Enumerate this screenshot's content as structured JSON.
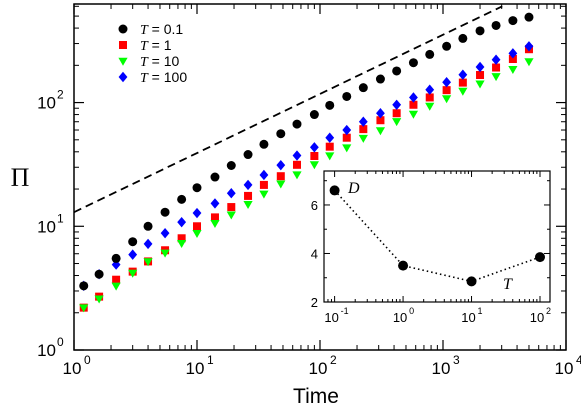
{
  "chart_data": [
    {
      "type": "scatter",
      "xlabel": "Time",
      "ylabel": "Π",
      "xscale": "log",
      "yscale": "log",
      "xlim": [
        1,
        10000
      ],
      "ylim": [
        1,
        600
      ],
      "xticks": [
        1,
        10,
        100,
        1000,
        10000
      ],
      "yticks": [
        1,
        10,
        100
      ],
      "xtick_labels": [
        [
          "10",
          "0"
        ],
        [
          "10",
          "1"
        ],
        [
          "10",
          "2"
        ],
        [
          "10",
          "3"
        ],
        [
          "10",
          "4"
        ]
      ],
      "ytick_labels": [
        [
          "10",
          "0"
        ],
        [
          "10",
          "1"
        ],
        [
          "10",
          "2"
        ]
      ],
      "legend_placement": "top-left",
      "series": [
        {
          "name": "T = 0.1",
          "marker": "circle",
          "color": "#000000",
          "x": [
            1.2,
            1.6,
            2.2,
            3,
            4,
            5.5,
            7.5,
            10,
            14,
            19,
            26,
            35,
            48,
            65,
            90,
            120,
            165,
            225,
            310,
            420,
            575,
            780,
            1070,
            1450,
            2000,
            2700,
            3700,
            5000
          ],
          "y": [
            3.3,
            4.1,
            5.5,
            7.5,
            10,
            13,
            16.5,
            20.5,
            25,
            31,
            38,
            46,
            56,
            67,
            80,
            95,
            112,
            132,
            155,
            180,
            210,
            245,
            285,
            330,
            380,
            420,
            460,
            490
          ]
        },
        {
          "name": "T = 1",
          "marker": "square",
          "color": "#ff0000",
          "x": [
            1.2,
            1.6,
            2.2,
            3,
            4,
            5.5,
            7.5,
            10,
            14,
            19,
            26,
            35,
            48,
            65,
            90,
            120,
            165,
            225,
            310,
            420,
            575,
            780,
            1070,
            1450,
            2000,
            2700,
            3700,
            5000
          ],
          "y": [
            2.2,
            2.7,
            3.7,
            4.3,
            5.2,
            6.4,
            8,
            10,
            11.8,
            14.3,
            17.6,
            21.6,
            25.4,
            31.4,
            37,
            44,
            52,
            61,
            72,
            82,
            96,
            110,
            126,
            145,
            167,
            192,
            225,
            270
          ]
        },
        {
          "name": "T = 10",
          "marker": "triangle-down",
          "color": "#00ff00",
          "x": [
            1.2,
            1.6,
            2.2,
            3,
            4,
            5.5,
            7.5,
            10,
            14,
            19,
            26,
            35,
            48,
            65,
            90,
            120,
            165,
            225,
            310,
            420,
            575,
            780,
            1070,
            1450,
            2000,
            2700,
            3700,
            5000
          ],
          "y": [
            2.2,
            2.6,
            3.3,
            4.2,
            5.2,
            6.1,
            7.3,
            8.8,
            10.6,
            12.4,
            15.1,
            18.3,
            22.1,
            26.2,
            31.6,
            37.3,
            43.3,
            51.7,
            59.5,
            70.5,
            81,
            94,
            108,
            124,
            142,
            163,
            186,
            215
          ]
        },
        {
          "name": "T = 100",
          "marker": "diamond",
          "color": "#0000ff",
          "x": [
            1.2,
            1.6,
            2.2,
            3,
            4,
            5.5,
            7.5,
            10,
            14,
            19,
            26,
            35,
            48,
            65,
            90,
            120,
            165,
            225,
            310,
            420,
            575,
            780,
            1070,
            1450,
            2000,
            2700,
            3700,
            5000
          ],
          "y": [
            3.3,
            4.1,
            4.9,
            5.9,
            7.2,
            8.8,
            10.8,
            12.8,
            15.3,
            18.5,
            21.6,
            26,
            31.2,
            37.3,
            43.5,
            52,
            60,
            70,
            82,
            96,
            110,
            127,
            146,
            168,
            194,
            222,
            250,
            285
          ]
        },
        {
          "name": "",
          "marker": "none",
          "style": "dashed",
          "color": "#000000",
          "x": [
            1,
            3030
          ],
          "y": [
            13,
            600
          ]
        }
      ]
    },
    {
      "type": "line",
      "xscale": "log",
      "xlim": [
        0.07,
        140
      ],
      "ylim": [
        2,
        7.4
      ],
      "xticks": [
        0.1,
        1,
        10,
        100
      ],
      "yticks": [
        2,
        4,
        6
      ],
      "xtick_labels": [
        [
          "10",
          "-1"
        ],
        [
          "10",
          "0"
        ],
        [
          "10",
          "1"
        ],
        [
          "10",
          "2"
        ]
      ],
      "ytick_labels": [
        "2",
        "4",
        "6"
      ],
      "annotations": [
        "D",
        "T"
      ],
      "series": [
        {
          "name": "",
          "marker": "circle",
          "style": "dotted",
          "color": "#000000",
          "x": [
            0.1,
            1,
            10,
            100
          ],
          "y": [
            6.6,
            3.5,
            2.85,
            3.85
          ]
        }
      ]
    }
  ]
}
